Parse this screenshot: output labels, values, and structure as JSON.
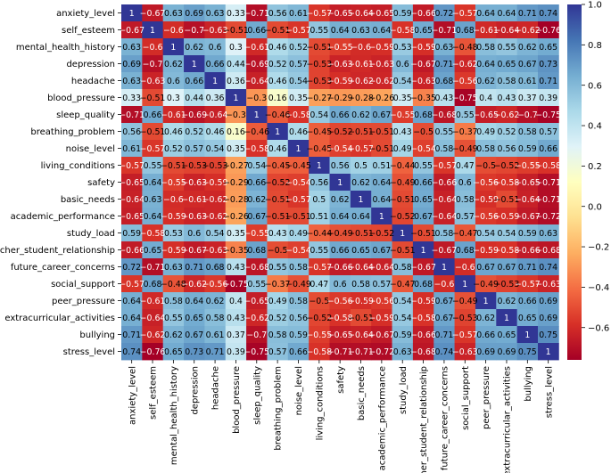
{
  "chart_data": {
    "type": "heatmap",
    "title": "",
    "xlabel": "",
    "ylabel": "",
    "labels": [
      "anxiety_level",
      "self_esteem",
      "mental_health_history",
      "depression",
      "headache",
      "blood_pressure",
      "sleep_quality",
      "breathing_problem",
      "noise_level",
      "living_conditions",
      "safety",
      "basic_needs",
      "academic_performance",
      "study_load",
      "teacher_student_relationship",
      "future_career_concerns",
      "social_support",
      "peer_pressure",
      "extracurricular_activities",
      "bullying",
      "stress_level"
    ],
    "matrix": [
      [
        1,
        -0.67,
        0.63,
        0.69,
        0.63,
        0.33,
        -0.71,
        0.56,
        0.61,
        -0.57,
        -0.65,
        -0.64,
        -0.65,
        0.59,
        -0.66,
        0.72,
        -0.57,
        0.64,
        0.64,
        0.71,
        0.74
      ],
      [
        -0.67,
        1,
        -0.6,
        -0.7,
        -0.63,
        -0.51,
        0.66,
        -0.51,
        -0.57,
        0.55,
        0.64,
        0.63,
        0.64,
        -0.58,
        0.65,
        -0.71,
        0.68,
        -0.61,
        -0.64,
        -0.62,
        -0.76
      ],
      [
        0.63,
        -0.6,
        1,
        0.62,
        0.6,
        0.3,
        -0.61,
        0.46,
        0.52,
        -0.51,
        -0.55,
        -0.6,
        -0.59,
        0.53,
        -0.59,
        0.63,
        -0.48,
        0.58,
        0.55,
        0.62,
        0.65
      ],
      [
        0.69,
        -0.7,
        0.62,
        1,
        0.66,
        0.44,
        -0.69,
        0.52,
        0.57,
        -0.53,
        -0.63,
        -0.61,
        -0.63,
        0.6,
        -0.67,
        0.71,
        -0.62,
        0.64,
        0.65,
        0.67,
        0.73
      ],
      [
        0.63,
        -0.63,
        0.6,
        0.66,
        1,
        0.36,
        -0.64,
        0.46,
        0.54,
        -0.53,
        -0.59,
        -0.62,
        -0.62,
        0.54,
        -0.63,
        0.68,
        -0.56,
        0.62,
        0.58,
        0.61,
        0.71
      ],
      [
        0.33,
        -0.51,
        0.3,
        0.44,
        0.36,
        1,
        -0.3,
        0.16,
        0.35,
        -0.27,
        -0.29,
        -0.28,
        -0.26,
        0.35,
        -0.35,
        0.43,
        -0.75,
        0.4,
        0.43,
        0.37,
        0.39
      ],
      [
        -0.71,
        0.66,
        -0.61,
        -0.69,
        -0.64,
        -0.3,
        1,
        -0.46,
        -0.58,
        0.54,
        0.66,
        0.62,
        0.67,
        -0.55,
        0.68,
        -0.68,
        0.55,
        -0.65,
        -0.62,
        -0.7,
        -0.75
      ],
      [
        0.56,
        -0.51,
        0.46,
        0.52,
        0.46,
        0.16,
        -0.46,
        1,
        0.46,
        -0.45,
        -0.52,
        -0.51,
        -0.51,
        0.43,
        -0.5,
        0.55,
        -0.37,
        0.49,
        0.52,
        0.58,
        0.57
      ],
      [
        0.61,
        -0.57,
        0.52,
        0.57,
        0.54,
        0.35,
        -0.58,
        0.46,
        1,
        -0.45,
        -0.54,
        -0.57,
        -0.51,
        0.49,
        -0.54,
        0.58,
        -0.49,
        0.58,
        0.56,
        0.59,
        0.66
      ],
      [
        -0.57,
        0.55,
        -0.51,
        -0.53,
        -0.53,
        -0.27,
        0.54,
        -0.45,
        -0.45,
        1,
        0.56,
        0.5,
        0.51,
        -0.44,
        0.55,
        -0.57,
        0.47,
        -0.5,
        -0.52,
        -0.55,
        -0.58
      ],
      [
        -0.65,
        0.64,
        -0.55,
        -0.63,
        -0.59,
        -0.29,
        0.66,
        -0.52,
        -0.54,
        0.56,
        1,
        0.62,
        0.64,
        -0.49,
        0.66,
        -0.66,
        0.6,
        -0.56,
        -0.58,
        -0.65,
        -0.71
      ],
      [
        -0.64,
        0.63,
        -0.6,
        -0.61,
        -0.62,
        -0.28,
        0.62,
        -0.51,
        -0.57,
        0.5,
        0.62,
        1,
        0.64,
        -0.51,
        0.65,
        -0.64,
        0.58,
        -0.59,
        -0.51,
        -0.64,
        -0.71
      ],
      [
        -0.65,
        0.64,
        -0.59,
        -0.63,
        -0.62,
        -0.26,
        0.67,
        -0.51,
        -0.51,
        0.51,
        0.64,
        0.64,
        1,
        -0.52,
        0.67,
        -0.64,
        0.57,
        -0.56,
        -0.59,
        -0.67,
        -0.72
      ],
      [
        0.59,
        -0.58,
        0.53,
        0.6,
        0.54,
        0.35,
        -0.55,
        0.43,
        0.49,
        -0.44,
        -0.49,
        -0.51,
        -0.52,
        1,
        -0.51,
        0.58,
        -0.47,
        0.54,
        0.54,
        0.59,
        0.63
      ],
      [
        -0.66,
        0.65,
        -0.59,
        -0.67,
        -0.63,
        -0.35,
        0.68,
        -0.5,
        -0.54,
        0.55,
        0.66,
        0.65,
        0.67,
        -0.51,
        1,
        -0.67,
        0.68,
        -0.59,
        -0.58,
        -0.66,
        -0.68
      ],
      [
        0.72,
        -0.71,
        0.63,
        0.71,
        0.68,
        0.43,
        -0.68,
        0.55,
        0.58,
        -0.57,
        -0.66,
        -0.64,
        -0.64,
        0.58,
        -0.67,
        1,
        -0.6,
        0.67,
        0.67,
        0.71,
        0.74
      ],
      [
        -0.57,
        0.68,
        -0.48,
        -0.62,
        -0.56,
        -0.75,
        0.55,
        -0.37,
        -0.49,
        0.47,
        0.6,
        0.58,
        0.57,
        -0.47,
        0.68,
        -0.6,
        1,
        -0.49,
        -0.53,
        -0.57,
        -0.63
      ],
      [
        0.64,
        -0.61,
        0.58,
        0.64,
        0.62,
        0.4,
        -0.65,
        0.49,
        0.58,
        -0.5,
        -0.56,
        -0.59,
        -0.56,
        0.54,
        -0.59,
        0.67,
        -0.49,
        1,
        0.62,
        0.66,
        0.69
      ],
      [
        0.64,
        -0.64,
        0.55,
        0.65,
        0.58,
        0.43,
        -0.62,
        0.52,
        0.56,
        -0.52,
        -0.58,
        -0.51,
        -0.59,
        0.54,
        -0.58,
        0.67,
        -0.53,
        0.62,
        1,
        0.65,
        0.69
      ],
      [
        0.71,
        -0.62,
        0.62,
        0.67,
        0.61,
        0.37,
        -0.7,
        0.58,
        0.59,
        -0.55,
        -0.65,
        -0.64,
        -0.67,
        0.59,
        -0.66,
        0.71,
        -0.57,
        0.66,
        0.65,
        1,
        0.75
      ],
      [
        0.74,
        -0.76,
        0.65,
        0.73,
        0.71,
        0.39,
        -0.75,
        0.57,
        0.66,
        -0.58,
        -0.71,
        -0.71,
        -0.72,
        0.63,
        -0.68,
        0.74,
        -0.63,
        0.69,
        0.69,
        0.75,
        1
      ]
    ],
    "vmin": -0.76,
    "vmax": 1.0,
    "colormap": "RdYlBu",
    "colorbar": {
      "ticks": [
        1.0,
        0.8,
        0.6,
        0.4,
        0.2,
        0.0,
        -0.2,
        -0.4,
        -0.6
      ],
      "tick_labels": [
        "1.0",
        "0.8",
        "0.6",
        "0.4",
        "0.2",
        "0.0",
        "−0.2",
        "−0.4",
        "−0.6"
      ]
    },
    "annotations": true,
    "legend": "right"
  }
}
